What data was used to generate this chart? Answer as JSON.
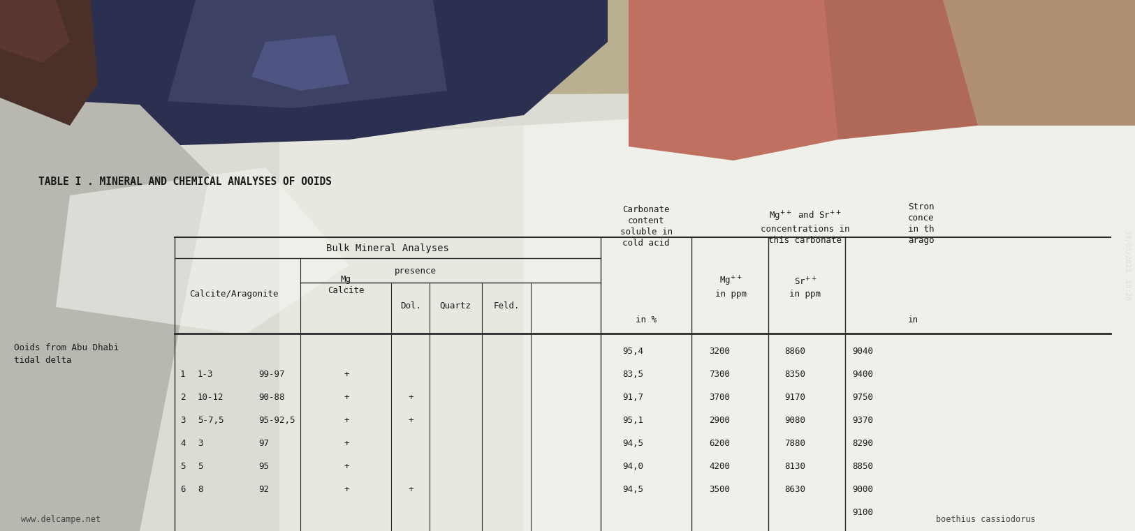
{
  "title": "TABLE I . MINERAL AND CHEMICAL ANALYSES OF OOIDS",
  "watermark_text": "www.delcampe.net",
  "credit_text": "boethius cassiodorus",
  "date_text": "30/05/2023  10:28",
  "rows": [
    [
      "",
      "",
      "",
      "",
      "",
      "",
      "95,4",
      "3200",
      "8860",
      "9040"
    ],
    [
      "1",
      "1-3",
      "99-97",
      "+",
      "",
      "",
      "83,5",
      "7300",
      "8350",
      "9400"
    ],
    [
      "2",
      "10-12",
      "90-88",
      "+",
      "+",
      "",
      "91,7",
      "3700",
      "9170",
      "9750"
    ],
    [
      "3",
      "5-7,5",
      "95-92,5",
      "+",
      "+",
      "",
      "95,1",
      "2900",
      "9080",
      "9370"
    ],
    [
      "4",
      "3",
      "97",
      "+",
      "",
      "",
      "94,5",
      "6200",
      "7880",
      "8290"
    ],
    [
      "5",
      "5",
      "95",
      "+",
      "",
      "",
      "94,0",
      "4200",
      "8130",
      "8850"
    ],
    [
      "6",
      "8",
      "92",
      "+",
      "+",
      "",
      "94,5",
      "3500",
      "8630",
      "9000"
    ],
    [
      "",
      "",
      "",
      "",
      "",
      "",
      "",
      "",
      "",
      "9100"
    ]
  ]
}
